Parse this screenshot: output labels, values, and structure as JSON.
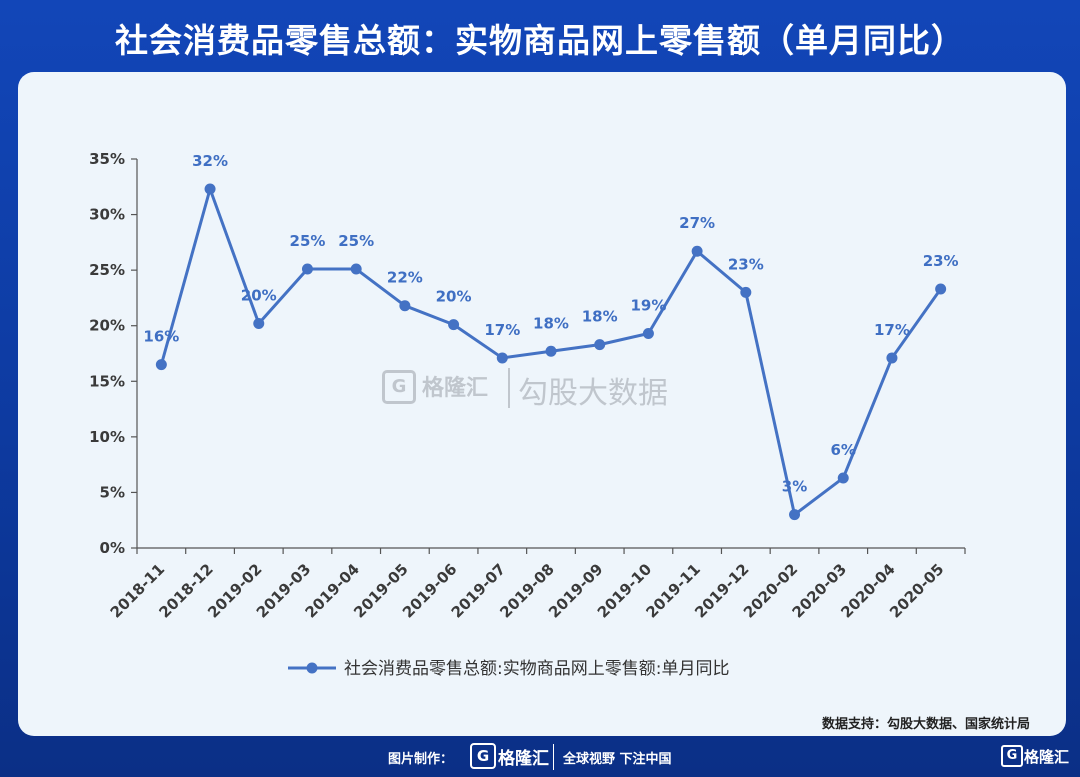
{
  "title": "社会消费品零售总额：实物商品网上零售额（单月同比）",
  "source": "数据支持：勾股大数据、国家统计局",
  "watermark": {
    "logo_letter": "G",
    "brand": "格隆汇",
    "text": "勾股大数据"
  },
  "footer": {
    "credit": "图片制作：",
    "logo_letter": "G",
    "brand": "格隆汇",
    "slogan": "全球视野 下注中国"
  },
  "corner_brand": {
    "logo_letter": "G",
    "text": "格隆汇"
  },
  "colors": {
    "line": "#4472c4",
    "label": "#3f6fc3",
    "background_top": "#1246b8",
    "panel": "#eef5fb"
  },
  "chart_data": {
    "type": "line",
    "categories": [
      "2018-11",
      "2018-12",
      "2019-02",
      "2019-03",
      "2019-04",
      "2019-05",
      "2019-06",
      "2019-07",
      "2019-08",
      "2019-09",
      "2019-10",
      "2019-11",
      "2019-12",
      "2020-02",
      "2020-03",
      "2020-04",
      "2020-05"
    ],
    "series": [
      {
        "name": "社会消费品零售总额:实物商品网上零售额:单月同比",
        "values": [
          16.5,
          32.3,
          20.2,
          25.1,
          25.1,
          21.8,
          20.1,
          17.1,
          17.7,
          18.3,
          19.3,
          26.7,
          23.0,
          3.0,
          6.3,
          17.1,
          23.3
        ],
        "labels": [
          "16%",
          "32%",
          "20%",
          "25%",
          "25%",
          "22%",
          "20%",
          "17%",
          "18%",
          "18%",
          "19%",
          "27%",
          "23%",
          "3%",
          "6%",
          "17%",
          "23%"
        ]
      }
    ],
    "yticks": [
      "0%",
      "5%",
      "10%",
      "15%",
      "20%",
      "25%",
      "30%",
      "35%"
    ],
    "ylim": [
      0,
      35
    ],
    "grid": false,
    "legend": "bottom"
  }
}
